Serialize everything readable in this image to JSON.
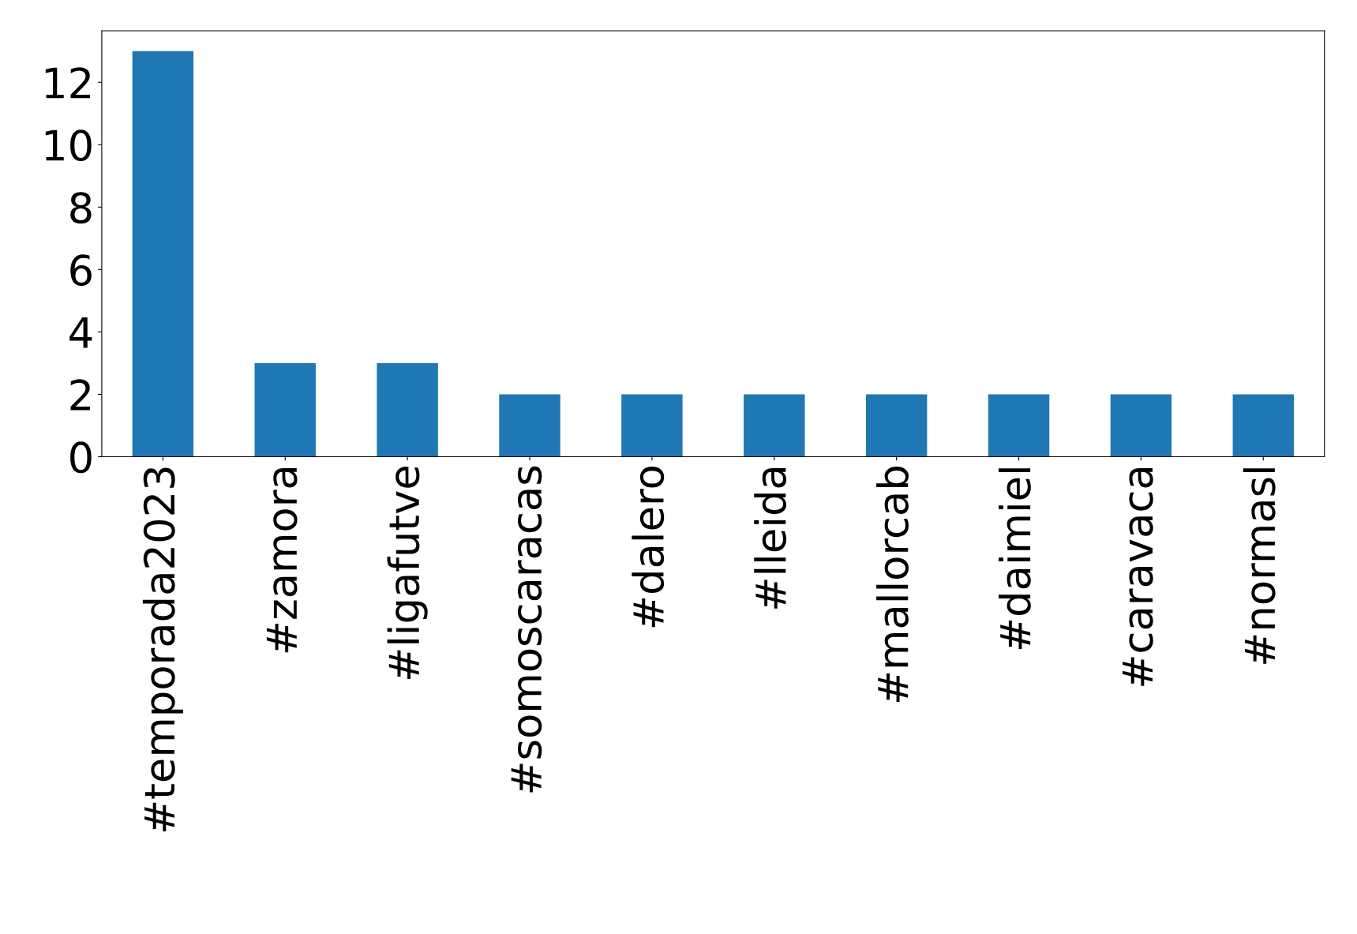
{
  "chart_data": {
    "type": "bar",
    "categories": [
      "#temporada2023",
      "#zamora",
      "#ligafutve",
      "#somoscaracas",
      "#dalero",
      "#lleida",
      "#mallorcab",
      "#daimiel",
      "#caravaca",
      "#normasl"
    ],
    "values": [
      13,
      3,
      3,
      2,
      2,
      2,
      2,
      2,
      2,
      2
    ],
    "color": "#1f77b4",
    "ylim": [
      0,
      13.65
    ],
    "yticks": [
      0,
      2,
      4,
      6,
      8,
      10,
      12
    ],
    "grid": false,
    "legend": false
  }
}
